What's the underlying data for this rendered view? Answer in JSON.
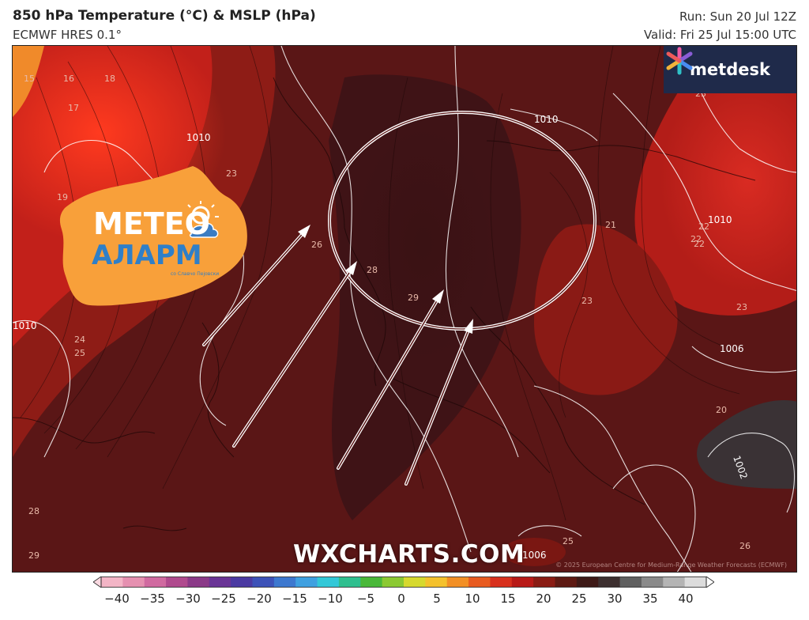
{
  "header": {
    "title": "850 hPa Temperature (°C) & MSLP (hPa)",
    "subtitle": "ECMWF HRES 0.1°",
    "run": "Run: Sun 20 Jul 12Z",
    "valid": "Valid: Fri 25 Jul 15:00 UTC"
  },
  "logos": {
    "metdesk": "metdesk",
    "meteo_top": "METEO",
    "meteo_bottom": "АЛАРМ",
    "meteo_small": "со Славчо Пејовски"
  },
  "watermark": "WXCHARTS.COM",
  "copyright": "© 2025 European Centre for Medium-Range Weather Forecasts (ECMWF)",
  "colorbar": {
    "labels": [
      "−40",
      "−35",
      "−30",
      "−25",
      "−20",
      "−15",
      "−10",
      "−5",
      "0",
      "5",
      "10",
      "15",
      "20",
      "25",
      "30",
      "35",
      "40"
    ],
    "colors": [
      "#f3b5c6",
      "#e590b0",
      "#d06aa0",
      "#b04a8e",
      "#8b3a88",
      "#6a3596",
      "#4b3aa2",
      "#3d52b8",
      "#3d78cf",
      "#3fa0e0",
      "#33c8d8",
      "#2fbf8f",
      "#49b839",
      "#8bc932",
      "#d6d92e",
      "#f4c12c",
      "#f28f25",
      "#e85b20",
      "#d8301d",
      "#b81a17",
      "#8a1c14",
      "#5e1a13",
      "#3e1a17",
      "#3d3030",
      "#606060",
      "#8a8a8a",
      "#b4b4b4",
      "#dcdcdc"
    ]
  },
  "map_labels": {
    "temps": [
      "15",
      "16",
      "17",
      "18",
      "19",
      "23",
      "24",
      "25",
      "26",
      "28",
      "29",
      "23",
      "22",
      "21",
      "22",
      "23",
      "20",
      "22",
      "23",
      "25",
      "26",
      "28",
      "29"
    ],
    "isobars": [
      "1010",
      "1010",
      "1010",
      "1010",
      "1006",
      "1002",
      "1006"
    ]
  }
}
